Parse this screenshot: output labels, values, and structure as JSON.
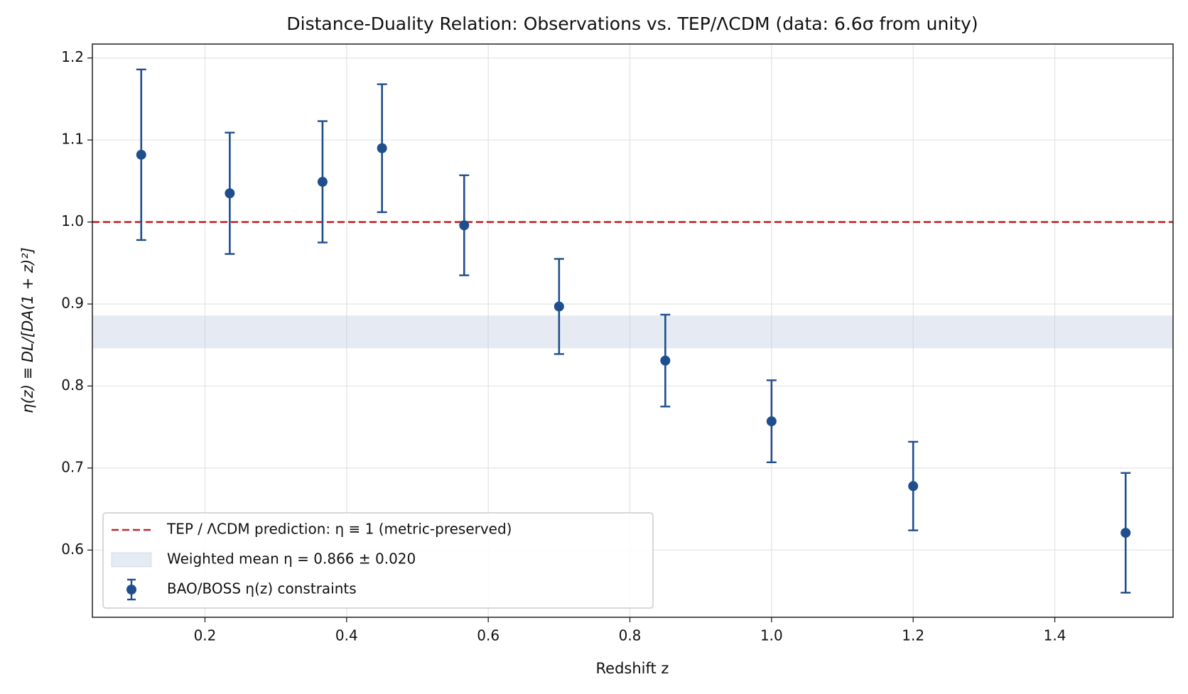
{
  "chart_data": {
    "type": "errorbar",
    "title": "Distance-Duality Relation: Observations vs. TEP/ΛCDM  (data: 6.6σ from unity)",
    "x_label": "Redshift z",
    "y_label": "η(z) ≡ DL/[DA(1 + z)²]",
    "xlim": [
      0.041,
      1.567
    ],
    "ylim": [
      0.518,
      1.217
    ],
    "xticks": [
      0.2,
      0.4,
      0.6,
      0.8,
      {
        "value": 1.0,
        "label": "1.0"
      },
      1.2,
      1.4
    ],
    "yticks": [
      0.6,
      0.7,
      0.8,
      0.9,
      {
        "value": 1.0,
        "label": "1.0"
      },
      1.1,
      1.2
    ],
    "grid": true,
    "legend_position": "lower left",
    "reference_line": {
      "name": "TEP / ΛCDM prediction: η ≡ 1 (metric-preserved)",
      "value": 1,
      "color": "#c0282d"
    },
    "band": {
      "name": "Weighted mean η = 0.866 ± 0.020",
      "center": 0.866,
      "halfwidth": 0.02,
      "color": "#b8c6dc"
    },
    "series": [
      {
        "name": "BAO/BOSS η(z) constraints",
        "color": "#1f4e8c",
        "x": [
          0.11,
          0.235,
          0.366,
          0.45,
          0.566,
          0.7,
          0.85,
          1.0,
          1.2,
          1.5
        ],
        "values": [
          1.082,
          1.035,
          1.049,
          1.09,
          0.996,
          0.897,
          0.831,
          0.757,
          0.678,
          0.621
        ],
        "errors": [
          0.104,
          0.074,
          0.074,
          0.078,
          0.061,
          0.058,
          0.056,
          0.05,
          0.054,
          0.073
        ]
      }
    ]
  }
}
